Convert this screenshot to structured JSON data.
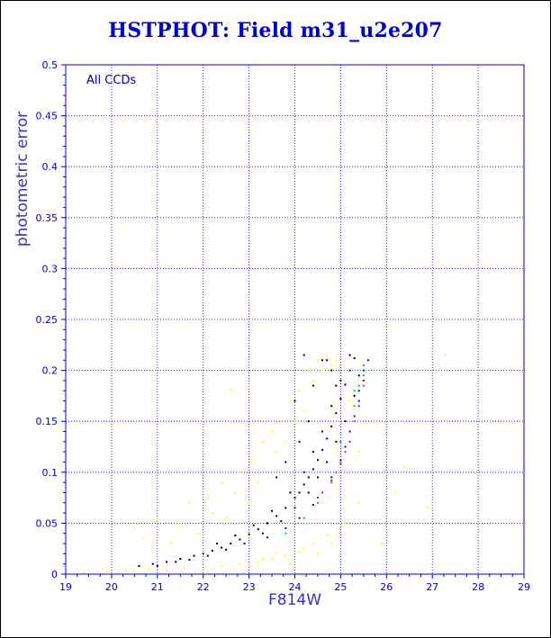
{
  "chart_data": {
    "type": "scatter",
    "title": "HSTPHOT: Field m31_u2e207",
    "xlabel": "F814W",
    "ylabel": "photometric error",
    "annotation": "All CCDs",
    "xlim": [
      19,
      29
    ],
    "ylim": [
      0,
      0.5
    ],
    "xticks": [
      "19",
      "20",
      "21",
      "22",
      "23",
      "24",
      "25",
      "26",
      "27",
      "28",
      "29"
    ],
    "yticks": [
      "0",
      "0.05",
      "0.1",
      "0.15",
      "0.2",
      "0.25",
      "0.3",
      "0.35",
      "0.4",
      "0.45",
      "0.5"
    ],
    "grid": true,
    "series": [
      {
        "color": "#ffff00",
        "points": [
          [
            19.4,
            0.002
          ],
          [
            19.9,
            0.003
          ],
          [
            20.3,
            0.004
          ],
          [
            20.8,
            0.005
          ],
          [
            21.2,
            0.004
          ],
          [
            21.6,
            0.006
          ],
          [
            22.0,
            0.005
          ],
          [
            22.4,
            0.008
          ],
          [
            22.8,
            0.01
          ],
          [
            23.2,
            0.012
          ],
          [
            23.5,
            0.015
          ],
          [
            23.8,
            0.018
          ],
          [
            24.1,
            0.022
          ],
          [
            24.4,
            0.03
          ],
          [
            24.7,
            0.038
          ],
          [
            25.0,
            0.045
          ],
          [
            20.5,
            0.045
          ],
          [
            20.7,
            0.035
          ],
          [
            21.0,
            0.055
          ],
          [
            21.3,
            0.03
          ],
          [
            21.5,
            0.05
          ],
          [
            21.7,
            0.07
          ],
          [
            21.9,
            0.04
          ],
          [
            22.1,
            0.075
          ],
          [
            22.2,
            0.06
          ],
          [
            22.4,
            0.09
          ],
          [
            22.5,
            0.055
          ],
          [
            22.7,
            0.08
          ],
          [
            22.8,
            0.1
          ],
          [
            23.0,
            0.07
          ],
          [
            23.1,
            0.11
          ],
          [
            23.2,
            0.09
          ],
          [
            23.3,
            0.13
          ],
          [
            23.4,
            0.1
          ],
          [
            23.5,
            0.14
          ],
          [
            23.6,
            0.12
          ],
          [
            23.7,
            0.15
          ],
          [
            23.8,
            0.13
          ],
          [
            23.9,
            0.17
          ],
          [
            24.0,
            0.15
          ],
          [
            24.1,
            0.18
          ],
          [
            24.2,
            0.16
          ],
          [
            24.3,
            0.2
          ],
          [
            24.4,
            0.19
          ],
          [
            24.5,
            0.21
          ],
          [
            24.6,
            0.2
          ],
          [
            24.7,
            0.215
          ],
          [
            24.8,
            0.205
          ],
          [
            24.9,
            0.21
          ],
          [
            25.0,
            0.19
          ],
          [
            25.1,
            0.2
          ],
          [
            25.2,
            0.17
          ],
          [
            25.3,
            0.15
          ],
          [
            25.4,
            0.12
          ],
          [
            23.0,
            0.01
          ],
          [
            23.3,
            0.015
          ],
          [
            23.6,
            0.02
          ],
          [
            23.9,
            0.01
          ],
          [
            24.2,
            0.025
          ],
          [
            24.5,
            0.02
          ],
          [
            24.8,
            0.03
          ],
          [
            25.1,
            0.05
          ],
          [
            25.4,
            0.07
          ],
          [
            22.6,
            0.181
          ],
          [
            26.4,
            0.105
          ],
          [
            26.9,
            0.065
          ],
          [
            27.3,
            0.215
          ],
          [
            25.9,
            0.03
          ],
          [
            26.2,
            0.08
          ]
        ]
      },
      {
        "color": "#000000",
        "points": [
          [
            20.6,
            0.008
          ],
          [
            20.9,
            0.01
          ],
          [
            21.2,
            0.012
          ],
          [
            21.5,
            0.015
          ],
          [
            21.8,
            0.018
          ],
          [
            22.0,
            0.02
          ],
          [
            22.2,
            0.023
          ],
          [
            22.4,
            0.026
          ],
          [
            22.6,
            0.03
          ],
          [
            22.8,
            0.034
          ],
          [
            23.0,
            0.039
          ],
          [
            23.2,
            0.044
          ],
          [
            23.4,
            0.05
          ],
          [
            23.6,
            0.057
          ],
          [
            23.8,
            0.065
          ],
          [
            24.0,
            0.075
          ],
          [
            24.1,
            0.08
          ],
          [
            24.2,
            0.088
          ],
          [
            24.3,
            0.095
          ],
          [
            24.4,
            0.103
          ],
          [
            24.5,
            0.112
          ],
          [
            24.6,
            0.122
          ],
          [
            24.7,
            0.133
          ],
          [
            24.8,
            0.145
          ],
          [
            24.9,
            0.158
          ],
          [
            25.0,
            0.172
          ],
          [
            25.1,
            0.186
          ],
          [
            25.2,
            0.2
          ],
          [
            25.3,
            0.212
          ],
          [
            21.0,
            0.008
          ],
          [
            21.4,
            0.012
          ],
          [
            21.7,
            0.014
          ],
          [
            22.1,
            0.018
          ],
          [
            22.5,
            0.024
          ],
          [
            22.9,
            0.03
          ],
          [
            23.3,
            0.04
          ],
          [
            23.7,
            0.052
          ],
          [
            24.0,
            0.065
          ],
          [
            24.3,
            0.08
          ],
          [
            24.5,
            0.095
          ],
          [
            24.7,
            0.11
          ],
          [
            24.9,
            0.13
          ],
          [
            25.1,
            0.15
          ],
          [
            25.3,
            0.175
          ],
          [
            25.4,
            0.195
          ],
          [
            22.3,
            0.03
          ],
          [
            22.7,
            0.038
          ],
          [
            23.1,
            0.048
          ],
          [
            23.5,
            0.062
          ],
          [
            23.9,
            0.08
          ],
          [
            24.2,
            0.1
          ],
          [
            24.4,
            0.12
          ],
          [
            24.6,
            0.14
          ],
          [
            24.8,
            0.165
          ],
          [
            25.0,
            0.19
          ],
          [
            24.6,
            0.21
          ],
          [
            24.8,
            0.2
          ],
          [
            24.3,
            0.15
          ],
          [
            24.1,
            0.13
          ],
          [
            23.8,
            0.11
          ],
          [
            23.6,
            0.095
          ],
          [
            24.0,
            0.17
          ],
          [
            24.4,
            0.185
          ],
          [
            24.7,
            0.21
          ],
          [
            25.2,
            0.215
          ],
          [
            24.2,
            0.215
          ],
          [
            24.9,
            0.185
          ]
        ]
      },
      {
        "color": "#00cc00",
        "points": [
          [
            23.8,
            0.04
          ],
          [
            24.2,
            0.055
          ],
          [
            24.5,
            0.07
          ],
          [
            24.8,
            0.09
          ],
          [
            25.0,
            0.11
          ],
          [
            25.2,
            0.14
          ],
          [
            25.3,
            0.165
          ],
          [
            25.4,
            0.185
          ],
          [
            25.5,
            0.205
          ],
          [
            25.0,
            0.13
          ],
          [
            25.3,
            0.18
          ],
          [
            25.5,
            0.195
          ]
        ]
      },
      {
        "color": "#0000ff",
        "points": [
          [
            22.9,
            0.03
          ],
          [
            23.4,
            0.036
          ],
          [
            23.8,
            0.045
          ],
          [
            24.1,
            0.055
          ],
          [
            24.4,
            0.068
          ],
          [
            24.6,
            0.08
          ],
          [
            24.8,
            0.095
          ],
          [
            25.0,
            0.112
          ],
          [
            25.1,
            0.125
          ],
          [
            25.2,
            0.14
          ],
          [
            25.3,
            0.155
          ],
          [
            25.4,
            0.17
          ],
          [
            25.5,
            0.19
          ],
          [
            25.6,
            0.21
          ],
          [
            25.5,
            0.2
          ],
          [
            25.4,
            0.18
          ]
        ]
      },
      {
        "color": "#ff0000",
        "points": [
          [
            24.5,
            0.075
          ],
          [
            24.8,
            0.092
          ],
          [
            25.0,
            0.108
          ],
          [
            25.2,
            0.13
          ],
          [
            25.4,
            0.165
          ],
          [
            25.5,
            0.19
          ]
        ]
      },
      {
        "color": "#ff00ff",
        "points": [
          [
            24.6,
            0.08
          ],
          [
            24.9,
            0.1
          ],
          [
            25.1,
            0.12
          ],
          [
            25.3,
            0.15
          ],
          [
            25.5,
            0.185
          ]
        ]
      }
    ]
  },
  "colors": {
    "title": "#0000cc",
    "axis": "#0000cc",
    "grid": "#0000cc",
    "tick_text": "#0000cc",
    "axis_title": "#3333cc",
    "annotation": "#0000aa"
  }
}
